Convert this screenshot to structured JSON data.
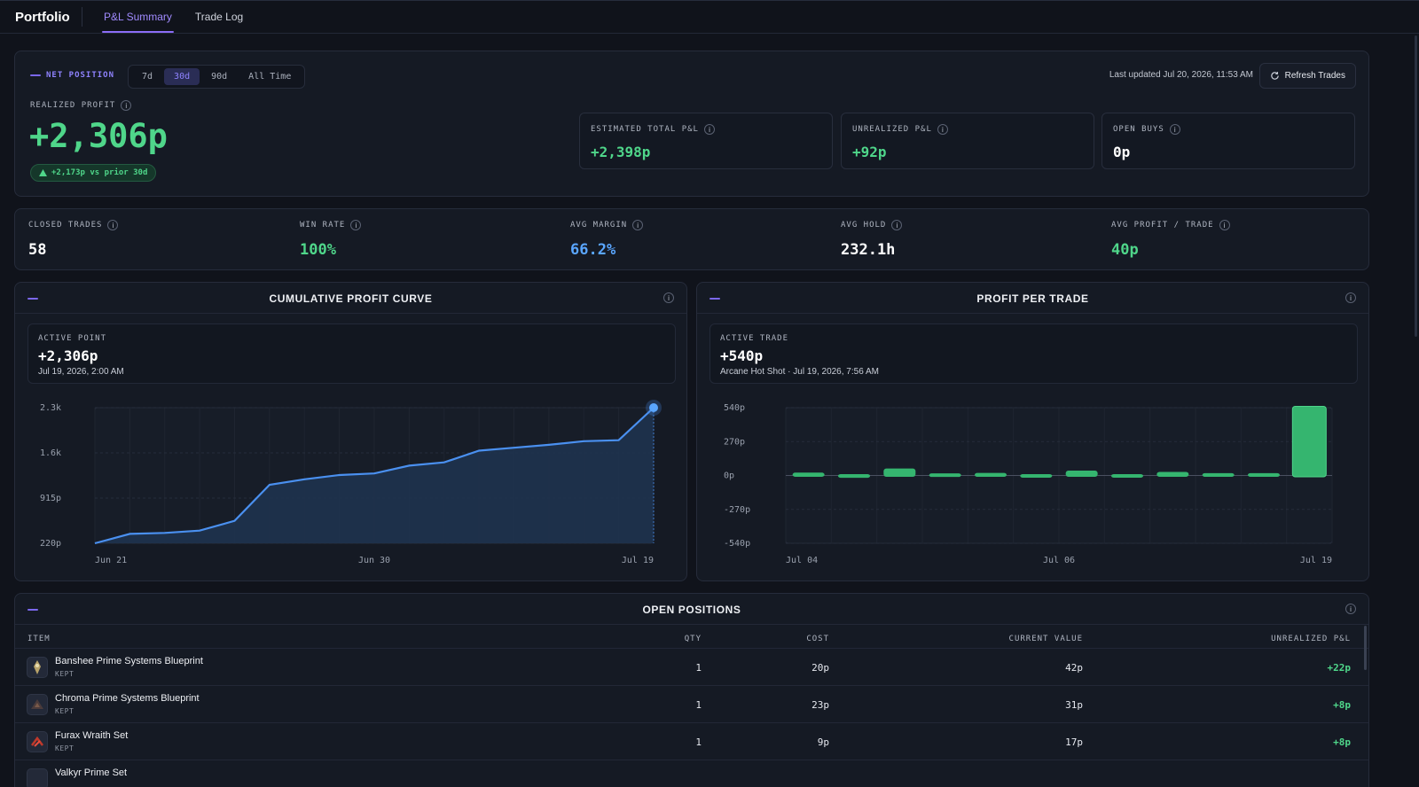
{
  "app": {
    "title": "Portfolio",
    "tabs": [
      "P&L Summary",
      "Trade Log"
    ]
  },
  "summary": {
    "net_position_label": "NET POSITION",
    "ranges": [
      "7d",
      "30d",
      "90d",
      "All Time"
    ],
    "active_range": "30d",
    "last_updated": "Last updated Jul 20, 2026, 11:53 AM",
    "refresh_label": "Refresh Trades",
    "realized_label": "REALIZED PROFIT",
    "realized_value": "+2,306p",
    "delta_badge": "+2,173p vs prior 30d",
    "stats": [
      {
        "label": "ESTIMATED TOTAL P&L",
        "value": "+2,398p",
        "color": "#4fd68a"
      },
      {
        "label": "UNREALIZED P&L",
        "value": "+92p",
        "color": "#4fd68a"
      },
      {
        "label": "OPEN BUYS",
        "value": "0p",
        "color": "#ffffff"
      }
    ]
  },
  "kpis": [
    {
      "label": "CLOSED TRADES",
      "value": "58",
      "color": "#ffffff"
    },
    {
      "label": "WIN RATE",
      "value": "100%",
      "color": "#4fd68a"
    },
    {
      "label": "AVG MARGIN",
      "value": "66.2%",
      "color": "#5aa6ff"
    },
    {
      "label": "AVG HOLD",
      "value": "232.1h",
      "color": "#ffffff"
    },
    {
      "label": "AVG PROFIT / TRADE",
      "value": "40p",
      "color": "#4fd68a"
    }
  ],
  "cumulative": {
    "title": "CUMULATIVE PROFIT CURVE",
    "active_label": "ACTIVE POINT",
    "active_value": "+2,306p",
    "active_sub": "Jul 19, 2026, 2:00 AM"
  },
  "per_trade": {
    "title": "PROFIT PER TRADE",
    "active_label": "ACTIVE TRADE",
    "active_value": "+540p",
    "active_sub": "Arcane Hot Shot · Jul 19, 2026, 7:56 AM"
  },
  "chart_data": [
    {
      "type": "area",
      "title": "CUMULATIVE PROFIT CURVE",
      "y_ticks": [
        "2.3k",
        "1.6k",
        "915p",
        "220p"
      ],
      "x_ticks": [
        "Jun 21",
        "Jun 30",
        "Jul 19"
      ],
      "ylim": [
        220,
        2306
      ],
      "x_points": 17,
      "values": [
        220,
        365,
        380,
        415,
        565,
        1120,
        1205,
        1270,
        1295,
        1415,
        1465,
        1645,
        1690,
        1735,
        1790,
        1805,
        2306
      ],
      "line_color": "#4a90f0",
      "grid": true
    },
    {
      "type": "bar",
      "title": "PROFIT PER TRADE",
      "y_ticks": [
        "540p",
        "270p",
        "0p",
        "-270p",
        "-540p"
      ],
      "x_ticks": [
        "Jul 04",
        "Jul 06",
        "Jul 19"
      ],
      "ylim": [
        -540,
        540
      ],
      "values": [
        12,
        -8,
        45,
        6,
        10,
        -5,
        28,
        -4,
        18,
        8,
        8,
        540
      ],
      "bar_color": "#35b56f",
      "grid": true
    }
  ],
  "positions": {
    "title": "OPEN POSITIONS",
    "columns": [
      "ITEM",
      "QTY",
      "COST",
      "CURRENT VALUE",
      "UNREALIZED P&L"
    ],
    "rows": [
      {
        "name": "Banshee Prime Systems Blueprint",
        "tag": "KEPT",
        "qty": "1",
        "cost": "20p",
        "value": "42p",
        "pl": "+22p"
      },
      {
        "name": "Chroma Prime Systems Blueprint",
        "tag": "KEPT",
        "qty": "1",
        "cost": "23p",
        "value": "31p",
        "pl": "+8p"
      },
      {
        "name": "Furax Wraith Set",
        "tag": "KEPT",
        "qty": "1",
        "cost": "9p",
        "value": "17p",
        "pl": "+8p"
      },
      {
        "name": "Valkyr Prime Set",
        "tag": "",
        "qty": "",
        "cost": "",
        "value": "",
        "pl": ""
      }
    ]
  }
}
